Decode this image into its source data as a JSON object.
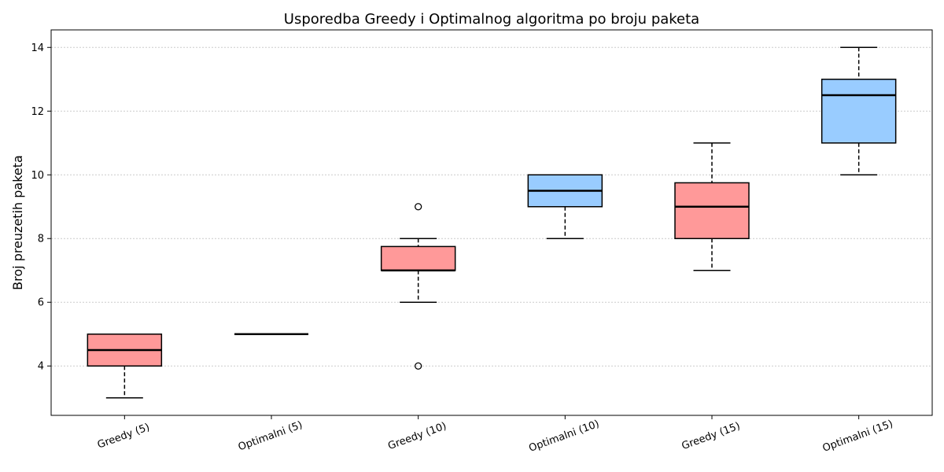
{
  "chart_data": {
    "type": "box",
    "title": "Usporedba Greedy i Optimalnog algoritma po broju paketa",
    "xlabel": "",
    "ylabel": "Broj preuzetih paketa",
    "ylim": [
      2.45,
      14.55
    ],
    "yticks": [
      4,
      6,
      8,
      10,
      12,
      14
    ],
    "grid": "y-dotted",
    "categories": [
      "Greedy (5)",
      "Optimalni (5)",
      "Greedy (10)",
      "Optimalni (10)",
      "Greedy (15)",
      "Optimalni (15)"
    ],
    "boxes": [
      {
        "label": "Greedy (5)",
        "whisker_low": 3,
        "q1": 4,
        "median": 4.5,
        "q3": 5,
        "whisker_high": 5,
        "fliers": [],
        "color": "#ff9999"
      },
      {
        "label": "Optimalni (5)",
        "whisker_low": 5,
        "q1": 5,
        "median": 5,
        "q3": 5,
        "whisker_high": 5,
        "fliers": [],
        "color": "#99ccff"
      },
      {
        "label": "Greedy (10)",
        "whisker_low": 6,
        "q1": 7,
        "median": 7,
        "q3": 7.75,
        "whisker_high": 8,
        "fliers": [
          9,
          4
        ],
        "color": "#ff9999"
      },
      {
        "label": "Optimalni (10)",
        "whisker_low": 8,
        "q1": 9,
        "median": 9.5,
        "q3": 10,
        "whisker_high": 10,
        "fliers": [],
        "color": "#99ccff"
      },
      {
        "label": "Greedy (15)",
        "whisker_low": 7,
        "q1": 8,
        "median": 9,
        "q3": 9.75,
        "whisker_high": 11,
        "fliers": [],
        "color": "#ff9999"
      },
      {
        "label": "Optimalni (15)",
        "whisker_low": 10,
        "q1": 11,
        "median": 12.5,
        "q3": 13,
        "whisker_high": 14,
        "fliers": [],
        "color": "#99ccff"
      }
    ]
  }
}
